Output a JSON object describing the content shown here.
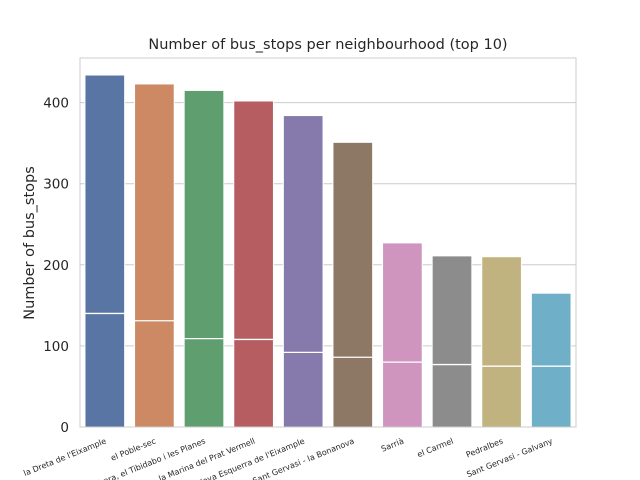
{
  "chart_data": {
    "type": "bar",
    "title": "Number of bus_stops per neighbourhood (top 10)",
    "xlabel": "",
    "ylabel": "Number of bus_stops",
    "ylim": [
      0,
      455
    ],
    "yticks": [
      0,
      100,
      200,
      300,
      400
    ],
    "grid": true,
    "categories": [
      "la Dreta de l'Eixample",
      "el Poble-sec",
      "Vallvidrera, el Tibidabo i les Planes",
      "la Marina del Prat Vermell",
      "la Nova Esquerra de l'Eixample",
      "Sant Gervasi - la Bonanova",
      "Sarrià",
      "el Carmel",
      "Pedralbes",
      "Sant Gervasi - Galvany"
    ],
    "values": [
      434,
      423,
      415,
      402,
      384,
      351,
      227,
      211,
      210,
      165
    ],
    "inner_lines": [
      140,
      131,
      109,
      108,
      92,
      86,
      80,
      77,
      75,
      75
    ],
    "colors": [
      "#5975a4",
      "#cc8963",
      "#5f9e6e",
      "#b55d60",
      "#857aab",
      "#8d7866",
      "#d095bf",
      "#8c8c8c",
      "#c1b37f",
      "#6fafc7"
    ]
  }
}
